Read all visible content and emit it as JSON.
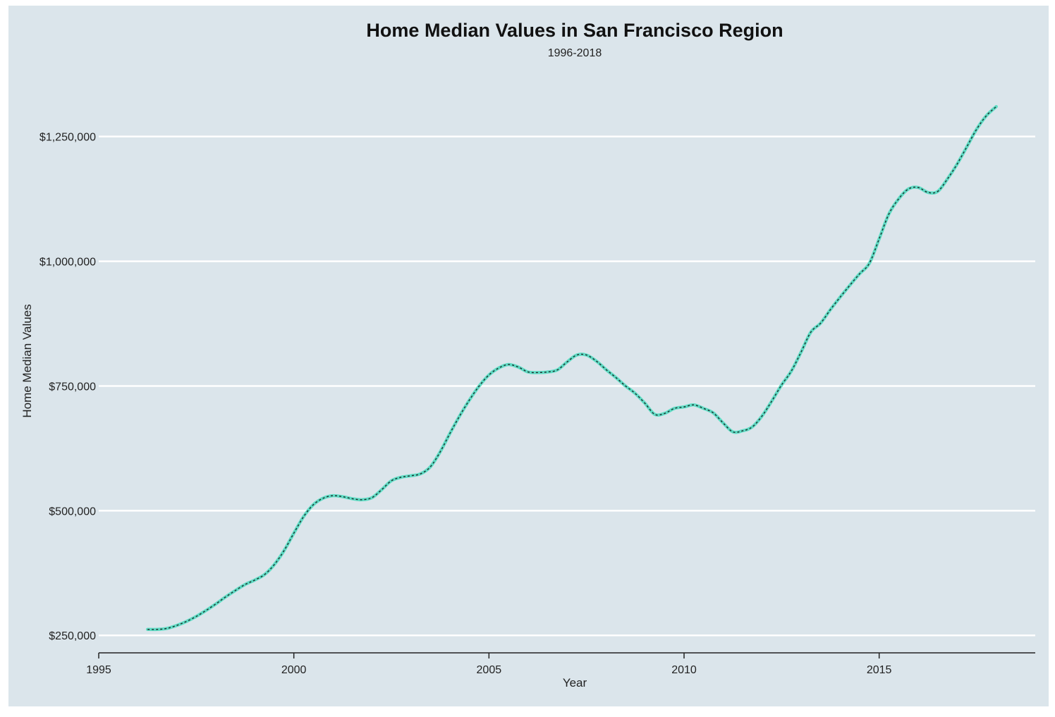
{
  "chart_data": {
    "type": "line",
    "title": "Home Median Values in San Francisco Region",
    "subtitle": "1996-2018",
    "xlabel": "Year",
    "ylabel": "Home Median Values",
    "xlim": [
      1995,
      2019
    ],
    "ylim": [
      215000,
      1340000
    ],
    "x_ticks": [
      1995,
      2000,
      2005,
      2010,
      2015
    ],
    "x_tick_labels": [
      "1995",
      "2000",
      "2005",
      "2010",
      "2015"
    ],
    "y_ticks": [
      250000,
      500000,
      750000,
      1000000,
      1250000
    ],
    "y_tick_labels": [
      "$250,000",
      "$500,000",
      "$750,000",
      "$1,000,000",
      "$1,250,000"
    ],
    "grid": true,
    "legend": "none",
    "colors": {
      "background": "#dbe5eb",
      "line": "#5fdcc4",
      "dash": "#1a2a2a",
      "grid": "#ffffff"
    },
    "series": [
      {
        "x": [
          1996.25,
          1996.5,
          1996.75,
          1997.0,
          1997.25,
          1997.5,
          1997.75,
          1998.0,
          1998.25,
          1998.5,
          1998.75,
          1999.0,
          1999.25,
          1999.5,
          1999.75,
          2000.0,
          2000.25,
          2000.5,
          2000.75,
          2001.0,
          2001.25,
          2001.5,
          2001.75,
          2002.0,
          2002.25,
          2002.5,
          2002.75,
          2003.0,
          2003.25,
          2003.5,
          2003.75,
          2004.0,
          2004.25,
          2004.5,
          2004.75,
          2005.0,
          2005.25,
          2005.5,
          2005.75,
          2006.0,
          2006.25,
          2006.5,
          2006.75,
          2007.0,
          2007.25,
          2007.5,
          2007.75,
          2008.0,
          2008.25,
          2008.5,
          2008.75,
          2009.0,
          2009.25,
          2009.5,
          2009.75,
          2010.0,
          2010.25,
          2010.5,
          2010.75,
          2011.0,
          2011.25,
          2011.5,
          2011.75,
          2012.0,
          2012.25,
          2012.5,
          2012.75,
          2013.0,
          2013.25,
          2013.5,
          2013.75,
          2014.0,
          2014.25,
          2014.5,
          2014.75,
          2015.0,
          2015.25,
          2015.5,
          2015.75,
          2016.0,
          2016.25,
          2016.5,
          2016.75,
          2017.0,
          2017.25,
          2017.5,
          2017.75,
          2018.0
        ],
        "values": [
          262000,
          262000,
          264000,
          270000,
          278000,
          288000,
          300000,
          313000,
          327000,
          340000,
          352000,
          361000,
          372000,
          392000,
          420000,
          455000,
          488000,
          512000,
          525000,
          530000,
          528000,
          524000,
          522000,
          526000,
          542000,
          560000,
          567000,
          570000,
          574000,
          588000,
          618000,
          655000,
          690000,
          722000,
          750000,
          772000,
          786000,
          793000,
          788000,
          778000,
          777000,
          778000,
          782000,
          798000,
          812000,
          812000,
          800000,
          783000,
          767000,
          750000,
          735000,
          715000,
          693000,
          695000,
          705000,
          708000,
          712000,
          705000,
          696000,
          676000,
          658000,
          660000,
          668000,
          690000,
          720000,
          752000,
          780000,
          818000,
          858000,
          876000,
          903000,
          928000,
          952000,
          975000,
          996000,
          1045000,
          1095000,
          1125000,
          1145000,
          1148000,
          1138000,
          1140000,
          1165000,
          1195000,
          1230000,
          1265000,
          1292000,
          1310000
        ]
      }
    ]
  }
}
